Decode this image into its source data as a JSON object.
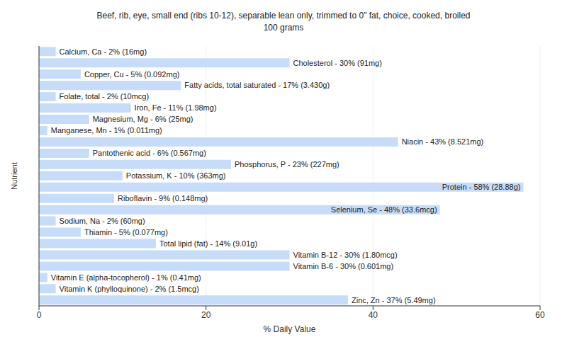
{
  "chart_data": {
    "type": "bar",
    "orientation": "horizontal",
    "title": "Beef, rib, eye, small end (ribs 10-12), separable lean only, trimmed to 0\" fat, choice, cooked, broiled",
    "subtitle": "100 grams",
    "x_label": "% Daily Value",
    "y_label": "Nutrient",
    "categories": [
      "Calcium, Ca",
      "Cholesterol",
      "Copper, Cu",
      "Fatty acids, total saturated",
      "Folate, total",
      "Iron, Fe",
      "Magnesium, Mg",
      "Manganese, Mn",
      "Niacin",
      "Pantothenic acid",
      "Phosphorus, P",
      "Potassium, K",
      "Protein",
      "Riboflavin",
      "Selenium, Se",
      "Sodium, Na",
      "Thiamin",
      "Total lipid (fat)",
      "Vitamin B-12",
      "Vitamin B-6",
      "Vitamin E (alpha-tocopherol)",
      "Vitamin K (phylloquinone)",
      "Zinc, Zn"
    ],
    "values": [
      2,
      30,
      5,
      17,
      2,
      11,
      6,
      1,
      43,
      6,
      23,
      10,
      58,
      9,
      48,
      2,
      5,
      14,
      30,
      30,
      1,
      2,
      37
    ],
    "value_labels": [
      "Calcium, Ca - 2% (16mg)",
      "Cholesterol - 30% (91mg)",
      "Copper, Cu - 5% (0.092mg)",
      "Fatty acids, total saturated - 17% (3.430g)",
      "Folate, total - 2% (10mcg)",
      "Iron, Fe - 11% (1.98mg)",
      "Magnesium, Mg - 6% (25mg)",
      "Manganese, Mn - 1% (0.011mg)",
      "Niacin - 43% (8.521mg)",
      "Pantothenic acid - 6% (0.567mg)",
      "Phosphorus, P - 23% (227mg)",
      "Potassium, K - 10% (363mg)",
      "Protein - 58% (28.88g)",
      "Riboflavin - 9% (0.148mg)",
      "Selenium, Se - 48% (33.6mcg)",
      "Sodium, Na - 2% (60mg)",
      "Thiamin - 5% (0.077mg)",
      "Total lipid (fat) - 14% (9.01g)",
      "Vitamin B-12 - 30% (1.80mcg)",
      "Vitamin B-6 - 30% (0.601mg)",
      "Vitamin E (alpha-tocopherol) - 1% (0.41mg)",
      "Vitamin K (phylloquinone) - 2% (1.5mcg)",
      "Zinc, Zn - 37% (5.49mg)"
    ],
    "color": "#c6dcf9",
    "xlim": [
      0,
      60
    ],
    "xticks": [
      0,
      20,
      40,
      60
    ],
    "grid": true,
    "data_labels": true,
    "tick_labels": "x"
  }
}
